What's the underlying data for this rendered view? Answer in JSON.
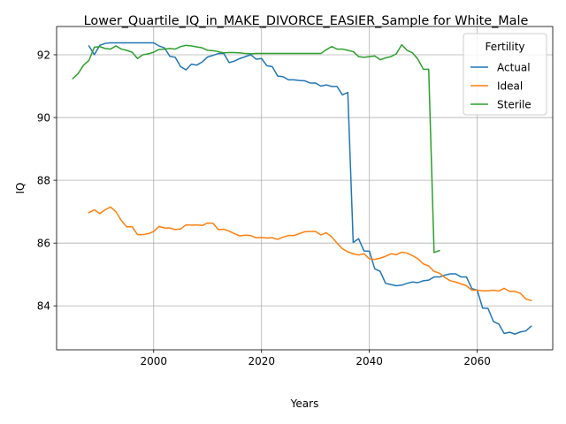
{
  "chart_data": {
    "type": "line",
    "title": "Lower_Quartile_IQ_in_MAKE_DIVORCE_EASIER_Sample for White_Male",
    "xlabel": "Years",
    "ylabel": "IQ",
    "xlim": [
      1982,
      2074
    ],
    "ylim": [
      82.6,
      92.9
    ],
    "xticks": [
      2000,
      2020,
      2040,
      2060
    ],
    "yticks": [
      84,
      86,
      88,
      90,
      92
    ],
    "grid": true,
    "legend": {
      "title": "Fertility",
      "placement": "top-right"
    },
    "series": [
      {
        "name": "Actual",
        "color": "#1f77b4",
        "points": [
          [
            1988,
            92.28
          ],
          [
            1989,
            92.0
          ],
          [
            1990,
            92.3
          ],
          [
            1991,
            92.36
          ],
          [
            1992,
            92.38
          ],
          [
            1993,
            92.38
          ],
          [
            1994,
            92.38
          ],
          [
            1995,
            92.38
          ],
          [
            1996,
            92.38
          ],
          [
            1997,
            92.38
          ],
          [
            1998,
            92.38
          ],
          [
            1999,
            92.38
          ],
          [
            2000,
            92.38
          ],
          [
            2001,
            92.28
          ],
          [
            2002,
            92.22
          ],
          [
            2003,
            91.95
          ],
          [
            2004,
            91.92
          ],
          [
            2005,
            91.62
          ],
          [
            2006,
            91.52
          ],
          [
            2007,
            91.7
          ],
          [
            2008,
            91.67
          ],
          [
            2009,
            91.77
          ],
          [
            2010,
            91.93
          ],
          [
            2011,
            91.98
          ],
          [
            2012,
            92.04
          ],
          [
            2013,
            92.04
          ],
          [
            2014,
            91.75
          ],
          [
            2015,
            91.8
          ],
          [
            2016,
            91.88
          ],
          [
            2017,
            91.94
          ],
          [
            2018,
            92.0
          ],
          [
            2019,
            91.86
          ],
          [
            2020,
            91.88
          ],
          [
            2021,
            91.65
          ],
          [
            2022,
            91.62
          ],
          [
            2023,
            91.32
          ],
          [
            2024,
            91.3
          ],
          [
            2025,
            91.2
          ],
          [
            2026,
            91.2
          ],
          [
            2027,
            91.18
          ],
          [
            2028,
            91.17
          ],
          [
            2029,
            91.1
          ],
          [
            2030,
            91.1
          ],
          [
            2031,
            91.0
          ],
          [
            2032,
            91.04
          ],
          [
            2033,
            90.99
          ],
          [
            2034,
            90.99
          ],
          [
            2035,
            90.72
          ],
          [
            2036,
            90.8
          ],
          [
            2037,
            86.02
          ],
          [
            2038,
            86.14
          ],
          [
            2039,
            85.75
          ],
          [
            2040,
            85.74
          ],
          [
            2041,
            85.18
          ],
          [
            2042,
            85.1
          ],
          [
            2043,
            84.72
          ],
          [
            2044,
            84.68
          ],
          [
            2045,
            84.64
          ],
          [
            2046,
            84.66
          ],
          [
            2047,
            84.72
          ],
          [
            2048,
            84.76
          ],
          [
            2049,
            84.74
          ],
          [
            2050,
            84.8
          ],
          [
            2051,
            84.82
          ],
          [
            2052,
            84.92
          ],
          [
            2053,
            84.92
          ],
          [
            2054,
            84.98
          ],
          [
            2055,
            85.02
          ],
          [
            2056,
            85.02
          ],
          [
            2057,
            84.92
          ],
          [
            2058,
            84.92
          ],
          [
            2059,
            84.55
          ],
          [
            2060,
            84.5
          ],
          [
            2061,
            83.93
          ],
          [
            2062,
            83.92
          ],
          [
            2063,
            83.5
          ],
          [
            2064,
            83.42
          ],
          [
            2065,
            83.12
          ],
          [
            2066,
            83.16
          ],
          [
            2067,
            83.1
          ],
          [
            2068,
            83.17
          ],
          [
            2069,
            83.2
          ],
          [
            2070,
            83.35
          ]
        ]
      },
      {
        "name": "Ideal",
        "color": "#ff7f0e",
        "points": [
          [
            1988,
            86.97
          ],
          [
            1989,
            87.06
          ],
          [
            1990,
            86.94
          ],
          [
            1991,
            87.06
          ],
          [
            1992,
            87.15
          ],
          [
            1993,
            87.0
          ],
          [
            1994,
            86.72
          ],
          [
            1995,
            86.52
          ],
          [
            1996,
            86.52
          ],
          [
            1997,
            86.27
          ],
          [
            1998,
            86.27
          ],
          [
            1999,
            86.3
          ],
          [
            2000,
            86.37
          ],
          [
            2001,
            86.53
          ],
          [
            2002,
            86.48
          ],
          [
            2003,
            86.48
          ],
          [
            2004,
            86.43
          ],
          [
            2005,
            86.45
          ],
          [
            2006,
            86.58
          ],
          [
            2007,
            86.57
          ],
          [
            2008,
            86.58
          ],
          [
            2009,
            86.56
          ],
          [
            2010,
            86.64
          ],
          [
            2011,
            86.63
          ],
          [
            2012,
            86.43
          ],
          [
            2013,
            86.44
          ],
          [
            2014,
            86.38
          ],
          [
            2015,
            86.3
          ],
          [
            2016,
            86.23
          ],
          [
            2017,
            86.25
          ],
          [
            2018,
            86.24
          ],
          [
            2019,
            86.17
          ],
          [
            2020,
            86.18
          ],
          [
            2021,
            86.16
          ],
          [
            2022,
            86.17
          ],
          [
            2023,
            86.12
          ],
          [
            2024,
            86.19
          ],
          [
            2025,
            86.24
          ],
          [
            2026,
            86.24
          ],
          [
            2027,
            86.3
          ],
          [
            2028,
            86.36
          ],
          [
            2029,
            86.37
          ],
          [
            2030,
            86.37
          ],
          [
            2031,
            86.26
          ],
          [
            2032,
            86.33
          ],
          [
            2033,
            86.2
          ],
          [
            2034,
            86.0
          ],
          [
            2035,
            85.82
          ],
          [
            2036,
            85.72
          ],
          [
            2037,
            85.66
          ],
          [
            2038,
            85.62
          ],
          [
            2039,
            85.66
          ],
          [
            2040,
            85.5
          ],
          [
            2041,
            85.48
          ],
          [
            2042,
            85.52
          ],
          [
            2043,
            85.58
          ],
          [
            2044,
            85.66
          ],
          [
            2045,
            85.63
          ],
          [
            2046,
            85.71
          ],
          [
            2047,
            85.68
          ],
          [
            2048,
            85.6
          ],
          [
            2049,
            85.5
          ],
          [
            2050,
            85.34
          ],
          [
            2051,
            85.27
          ],
          [
            2052,
            85.1
          ],
          [
            2053,
            85.04
          ],
          [
            2054,
            84.9
          ],
          [
            2055,
            84.8
          ],
          [
            2056,
            84.76
          ],
          [
            2057,
            84.7
          ],
          [
            2058,
            84.64
          ],
          [
            2059,
            84.5
          ],
          [
            2060,
            84.5
          ],
          [
            2061,
            84.48
          ],
          [
            2062,
            84.48
          ],
          [
            2063,
            84.5
          ],
          [
            2064,
            84.47
          ],
          [
            2065,
            84.56
          ],
          [
            2066,
            84.46
          ],
          [
            2067,
            84.46
          ],
          [
            2068,
            84.4
          ],
          [
            2069,
            84.22
          ],
          [
            2070,
            84.17
          ]
        ]
      },
      {
        "name": "Sterile",
        "color": "#2ca02c",
        "points": [
          [
            1985,
            91.24
          ],
          [
            1986,
            91.4
          ],
          [
            1987,
            91.67
          ],
          [
            1988,
            91.82
          ],
          [
            1989,
            92.24
          ],
          [
            1990,
            92.26
          ],
          [
            1991,
            92.2
          ],
          [
            1992,
            92.18
          ],
          [
            1993,
            92.28
          ],
          [
            1994,
            92.18
          ],
          [
            1995,
            92.14
          ],
          [
            1996,
            92.08
          ],
          [
            1997,
            91.88
          ],
          [
            1998,
            92.0
          ],
          [
            1999,
            92.03
          ],
          [
            2000,
            92.08
          ],
          [
            2001,
            92.17
          ],
          [
            2002,
            92.18
          ],
          [
            2003,
            92.2
          ],
          [
            2004,
            92.18
          ],
          [
            2005,
            92.26
          ],
          [
            2006,
            92.3
          ],
          [
            2007,
            92.28
          ],
          [
            2008,
            92.25
          ],
          [
            2009,
            92.22
          ],
          [
            2010,
            92.14
          ],
          [
            2011,
            92.13
          ],
          [
            2012,
            92.1
          ],
          [
            2013,
            92.06
          ],
          [
            2014,
            92.07
          ],
          [
            2015,
            92.07
          ],
          [
            2016,
            92.06
          ],
          [
            2017,
            92.04
          ],
          [
            2018,
            92.03
          ],
          [
            2019,
            92.04
          ],
          [
            2020,
            92.04
          ],
          [
            2021,
            92.04
          ],
          [
            2022,
            92.04
          ],
          [
            2023,
            92.04
          ],
          [
            2024,
            92.04
          ],
          [
            2025,
            92.04
          ],
          [
            2026,
            92.04
          ],
          [
            2027,
            92.04
          ],
          [
            2028,
            92.04
          ],
          [
            2029,
            92.04
          ],
          [
            2030,
            92.04
          ],
          [
            2031,
            92.04
          ],
          [
            2032,
            92.16
          ],
          [
            2033,
            92.26
          ],
          [
            2034,
            92.18
          ],
          [
            2035,
            92.18
          ],
          [
            2036,
            92.14
          ],
          [
            2037,
            92.1
          ],
          [
            2038,
            91.94
          ],
          [
            2039,
            91.92
          ],
          [
            2040,
            91.94
          ],
          [
            2041,
            91.96
          ],
          [
            2042,
            91.84
          ],
          [
            2043,
            91.9
          ],
          [
            2044,
            91.94
          ],
          [
            2045,
            92.03
          ],
          [
            2046,
            92.32
          ],
          [
            2047,
            92.14
          ],
          [
            2048,
            92.06
          ],
          [
            2049,
            91.86
          ],
          [
            2050,
            91.54
          ],
          [
            2051,
            91.54
          ],
          [
            2052,
            85.7
          ],
          [
            2053,
            85.76
          ]
        ]
      }
    ]
  }
}
